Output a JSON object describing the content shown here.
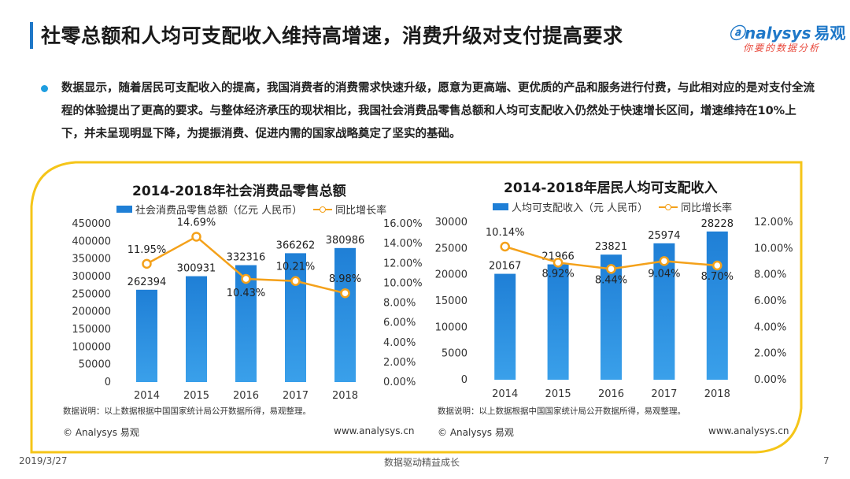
{
  "header": {
    "title": "社零总额和人均可支配收入维持高增速，消费升级对支付提高要求",
    "logo_text": "nalysys",
    "logo_cn": "易观",
    "logo_tagline": "你要的数据分析"
  },
  "summary": {
    "text": "数据显示，随着居民可支配收入的提高，我国消费者的消费需求快速升级，愿意为更高端、更优质的产品和服务进行付费，与此相对应的是对支付全流程的体验提出了更高的要求。与整体经济承压的现状相比，我国社会消费品零售总额和人均可支配收入仍然处于快速增长区间，增速维持在10%上下，并未呈现明显下降，为提振消费、促进内需的国家战略奠定了坚实的基础。"
  },
  "charts": [
    {
      "footer_left": "© Analysys 易观",
      "footer_right": "www.analysys.cn",
      "note": "数据说明：以上数据根据中国国家统计局公开数据所得，易观整理。"
    },
    {
      "footer_left": "© Analysys 易观",
      "footer_right": "www.analysys.cn",
      "note": "数据说明：以上数据根据中国国家统计局公开数据所得，易观整理。"
    }
  ],
  "chart_data": [
    {
      "type": "bar",
      "title": "2014-2018年社会消费品零售总额",
      "categories": [
        "2014",
        "2015",
        "2016",
        "2017",
        "2018"
      ],
      "series": [
        {
          "name": "社会消费品零售总额（亿元 人民币）",
          "type": "bar",
          "values": [
            262394,
            300931,
            332316,
            366262,
            380986
          ],
          "labels": [
            "262394",
            "300931",
            "332316",
            "366262",
            "380986"
          ],
          "color": "#1f7fd6"
        },
        {
          "name": "同比增长率",
          "type": "line",
          "values": [
            11.95,
            14.69,
            10.43,
            10.21,
            8.98
          ],
          "labels": [
            "11.95%",
            "14.69%",
            "10.43%",
            "10.21%",
            "8.98%"
          ],
          "color": "#f4a11a"
        }
      ],
      "y_left": {
        "min": 0,
        "max": 450000,
        "ticks": [
          "0",
          "50000",
          "100000",
          "150000",
          "200000",
          "250000",
          "300000",
          "350000",
          "400000",
          "450000"
        ]
      },
      "y_right": {
        "min": 0,
        "max": 16,
        "ticks": [
          "0.00%",
          "2.00%",
          "4.00%",
          "6.00%",
          "8.00%",
          "10.00%",
          "12.00%",
          "14.00%",
          "16.00%"
        ]
      },
      "legend_position": "top"
    },
    {
      "type": "bar",
      "title": "2014-2018年居民人均可支配收入",
      "categories": [
        "2014",
        "2015",
        "2016",
        "2017",
        "2018"
      ],
      "series": [
        {
          "name": "人均可支配收入（元 人民币）",
          "type": "bar",
          "values": [
            20167,
            21966,
            23821,
            25974,
            28228
          ],
          "labels": [
            "20167",
            "21966",
            "23821",
            "25974",
            "28228"
          ],
          "color": "#1f7fd6"
        },
        {
          "name": "同比增长率",
          "type": "line",
          "values": [
            10.14,
            8.92,
            8.44,
            9.04,
            8.7
          ],
          "labels": [
            "10.14%",
            "8.92%",
            "8.44%",
            "9.04%",
            "8.70%"
          ],
          "color": "#f4a11a"
        }
      ],
      "y_left": {
        "min": 0,
        "max": 30000,
        "ticks": [
          "0",
          "5000",
          "10000",
          "15000",
          "20000",
          "25000",
          "30000"
        ]
      },
      "y_right": {
        "min": 0,
        "max": 12,
        "ticks": [
          "0.00%",
          "2.00%",
          "4.00%",
          "6.00%",
          "8.00%",
          "10.00%",
          "12.00%"
        ]
      },
      "legend_position": "top"
    }
  ],
  "footer": {
    "date": "2019/3/27",
    "slogan": "数据驱动精益成长",
    "page": "7"
  },
  "colors": {
    "accent": "#1f78c8",
    "bar": "#1f7fd6",
    "line": "#f4a11a",
    "frame": "#f5c518"
  }
}
